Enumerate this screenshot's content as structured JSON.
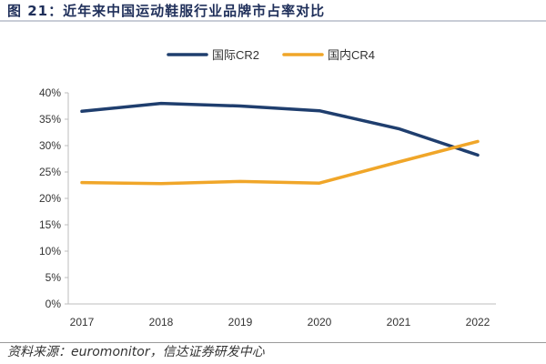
{
  "title": "图 21：近年来中国运动鞋服行业品牌市占率对比",
  "source": "资料来源：euromonitor，信达证券研发中心",
  "colors": {
    "international": "#1f3e6e",
    "domestic": "#f0a629",
    "axis": "#bdbdbd",
    "text": "#333333"
  },
  "chart_data": {
    "type": "line",
    "title": "",
    "xlabel": "",
    "ylabel": "",
    "x": [
      "2017",
      "2018",
      "2019",
      "2020",
      "2021",
      "2022"
    ],
    "ylim": [
      0,
      40
    ],
    "yticks": [
      0,
      5,
      10,
      15,
      20,
      25,
      30,
      35,
      40
    ],
    "ytick_labels": [
      "0%",
      "5%",
      "10%",
      "15%",
      "20%",
      "25%",
      "30%",
      "35%",
      "40%"
    ],
    "grid": false,
    "legend_position": "top-center",
    "series": [
      {
        "name": "国际CR2",
        "values": [
          36.5,
          38.0,
          37.5,
          36.6,
          33.2,
          28.2
        ],
        "color": "#1f3e6e"
      },
      {
        "name": "国内CR4",
        "values": [
          23.0,
          22.8,
          23.2,
          22.9,
          26.9,
          30.8
        ],
        "color": "#f0a629"
      }
    ]
  }
}
